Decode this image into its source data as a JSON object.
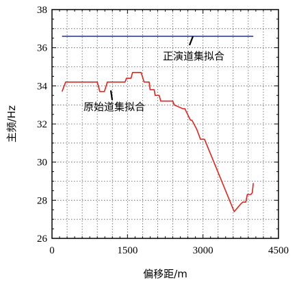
{
  "chart_data": {
    "type": "line",
    "xlabel": "偏移距/m",
    "ylabel": "主频/Hz",
    "xlim": [
      0,
      4500
    ],
    "ylim": [
      26,
      38
    ],
    "xticks": [
      0,
      1500,
      3000,
      4500
    ],
    "yticks": [
      26,
      28,
      30,
      32,
      34,
      36,
      38
    ],
    "grid": true,
    "series": [
      {
        "name": "正演道集拟合",
        "color": "#1f2f8f",
        "x": [
          200,
          4000
        ],
        "y": [
          36.6,
          36.6
        ]
      },
      {
        "name": "原始道集拟合",
        "color": "#e8201a",
        "x": [
          200,
          270,
          900,
          950,
          1040,
          1100,
          1450,
          1480,
          1570,
          1600,
          1770,
          1830,
          1930,
          1950,
          2030,
          2050,
          2130,
          2160,
          2400,
          2430,
          2600,
          2640,
          2750,
          2780,
          2860,
          2880,
          2950,
          2970,
          3030,
          3620,
          3750,
          3790,
          3850,
          3880,
          3950,
          3980,
          4000
        ],
        "y": [
          33.7,
          34.2,
          34.2,
          33.7,
          33.7,
          34.2,
          34.2,
          34.4,
          34.4,
          34.7,
          34.7,
          34.2,
          34.2,
          33.8,
          33.8,
          33.5,
          33.5,
          33.2,
          33.2,
          33.0,
          32.8,
          32.8,
          32.2,
          32.2,
          31.8,
          31.7,
          31.2,
          31.2,
          31.2,
          27.4,
          27.8,
          27.9,
          27.9,
          28.3,
          28.3,
          28.4,
          28.9
        ]
      }
    ],
    "annotations": [
      {
        "text": "正演道集拟合",
        "series": 0
      },
      {
        "text": "原始道集拟合",
        "series": 1
      }
    ]
  }
}
